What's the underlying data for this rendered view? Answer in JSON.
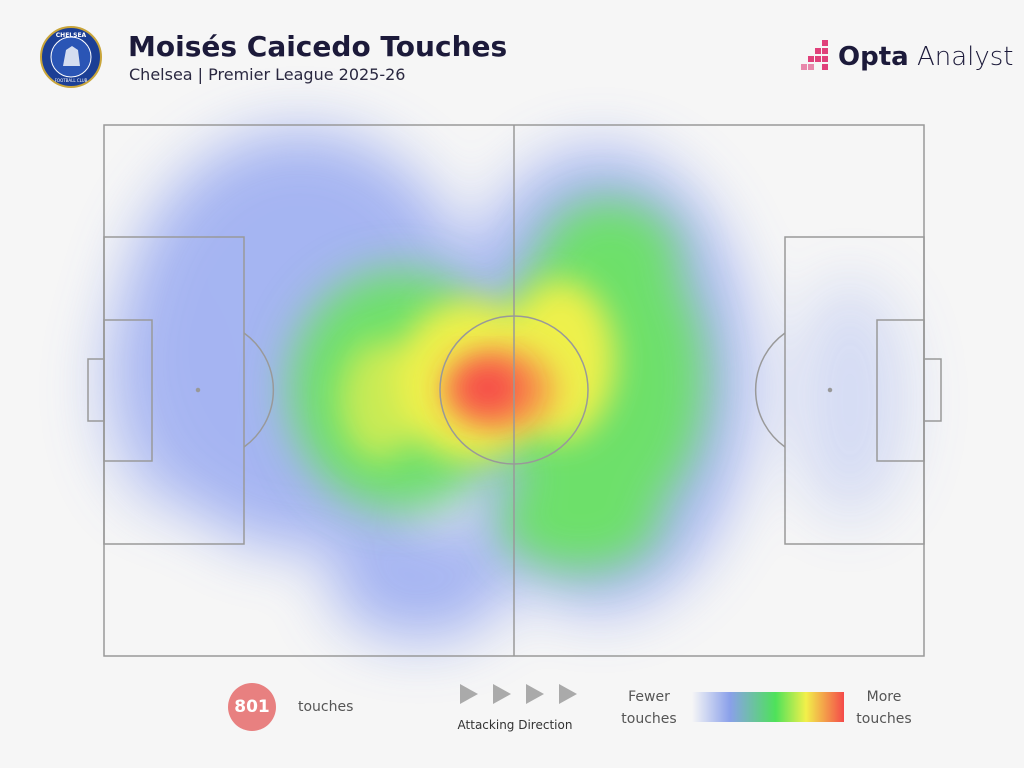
{
  "header": {
    "title": "Moisés Caicedo Touches",
    "subtitle": "Chelsea | Premier League 2025-26",
    "crest_top": "CHELSEA",
    "crest_bottom": "FOOTBALL CLUB"
  },
  "brand": {
    "bold": "Opta",
    "light": "Analyst"
  },
  "footer": {
    "touches_count": "801",
    "touches_label": "touches",
    "direction_label": "Attacking Direction",
    "legend_low": "Fewer touches",
    "legend_high": "More touches"
  }
}
